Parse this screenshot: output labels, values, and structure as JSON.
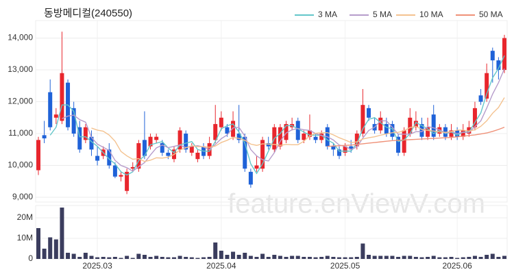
{
  "chart_data": {
    "type": "candlestick",
    "title": "동방메디컬(240550)",
    "watermark": "feature.enViewV.com",
    "categories": [
      null,
      null,
      null,
      null,
      null,
      null,
      null,
      null,
      null,
      null,
      "2025.03",
      null,
      null,
      null,
      null,
      null,
      null,
      null,
      null,
      null,
      null,
      null,
      null,
      null,
      null,
      null,
      null,
      null,
      null,
      null,
      null,
      "2025.04",
      null,
      null,
      null,
      null,
      null,
      null,
      null,
      null,
      null,
      null,
      null,
      null,
      null,
      null,
      null,
      null,
      null,
      null,
      null,
      null,
      "2025.05",
      null,
      null,
      null,
      null,
      null,
      null,
      null,
      null,
      null,
      null,
      null,
      null,
      null,
      null,
      null,
      null,
      null,
      null,
      "2025.06",
      null,
      null,
      null,
      null,
      null,
      null,
      null,
      null
    ],
    "open": [
      9850,
      10950,
      12300,
      11500,
      11400,
      12600,
      11800,
      11200,
      10800,
      10900,
      10300,
      10300,
      10500,
      10000,
      9650,
      9200,
      9900,
      9900,
      10800,
      10600,
      10800,
      10700,
      10400,
      10200,
      10500,
      11000,
      10400,
      10200,
      10600,
      10300,
      10800,
      11200,
      11200,
      10900,
      11000,
      10900,
      9800,
      9900,
      9900,
      10700,
      10500,
      10600,
      10800,
      11200,
      11400,
      10800,
      10900,
      10900,
      10800,
      11200,
      10600,
      10500,
      10400,
      10600,
      10600,
      11000,
      11800,
      11300,
      11100,
      11300,
      11300,
      10900,
      10400,
      11000,
      11200,
      11300,
      10900,
      11600,
      11000,
      11200,
      10900,
      11100,
      10900,
      11000,
      11200,
      12200,
      12100,
      13600,
      13300,
      13000
    ],
    "high": [
      10900,
      11400,
      12700,
      11800,
      14200,
      12700,
      12000,
      11400,
      11300,
      11100,
      10600,
      10600,
      10700,
      10100,
      9800,
      9900,
      10100,
      10800,
      11700,
      11000,
      11000,
      10800,
      10500,
      10600,
      11200,
      11100,
      10700,
      10500,
      10700,
      10900,
      11900,
      11700,
      11300,
      11700,
      11900,
      11000,
      9900,
      10300,
      10900,
      10900,
      11300,
      11300,
      11400,
      11500,
      11500,
      11100,
      11600,
      11000,
      11100,
      11300,
      10700,
      10600,
      10700,
      10800,
      11100,
      12400,
      11900,
      11500,
      11700,
      11500,
      11400,
      11000,
      11200,
      11800,
      11700,
      11500,
      11500,
      11900,
      11300,
      11300,
      11300,
      11200,
      11300,
      11400,
      12000,
      12400,
      13200,
      13700,
      13400,
      14100
    ],
    "low": [
      9700,
      10700,
      11100,
      11300,
      11300,
      11100,
      10900,
      10400,
      10700,
      10300,
      10000,
      10200,
      9900,
      9600,
      9500,
      9100,
      9800,
      9800,
      10200,
      10500,
      10700,
      10300,
      10200,
      10100,
      10400,
      10400,
      10300,
      10100,
      10200,
      10200,
      10700,
      11100,
      10900,
      10800,
      10700,
      9800,
      9300,
      9800,
      9800,
      10500,
      10400,
      10500,
      10700,
      11100,
      10700,
      10700,
      10800,
      10700,
      10700,
      10500,
      10300,
      10200,
      10300,
      10400,
      10500,
      10900,
      11400,
      11000,
      11000,
      10900,
      10800,
      10300,
      10300,
      10900,
      11100,
      10800,
      10800,
      10800,
      10900,
      10800,
      10800,
      10800,
      10800,
      10900,
      11100,
      11900,
      12000,
      12600,
      12700,
      12900
    ],
    "close": [
      10800,
      10850,
      11200,
      11600,
      12900,
      11200,
      11000,
      10500,
      11200,
      10500,
      10150,
      10500,
      10000,
      9650,
      9700,
      9800,
      9950,
      10700,
      10300,
      10900,
      10900,
      10400,
      10300,
      10500,
      11100,
      10500,
      10600,
      10400,
      10300,
      10700,
      11300,
      11500,
      11000,
      11400,
      10800,
      9900,
      9400,
      10000,
      10800,
      10600,
      11200,
      11200,
      11300,
      11300,
      10800,
      11000,
      11100,
      10800,
      11000,
      10600,
      10500,
      10300,
      10600,
      10500,
      11000,
      11900,
      11500,
      11100,
      11500,
      11000,
      10900,
      10400,
      11100,
      11500,
      11400,
      10900,
      11200,
      10900,
      11200,
      10900,
      11100,
      10900,
      11100,
      11200,
      11800,
      12000,
      12900,
      13300,
      13000,
      14000
    ],
    "up_color": "#e8262d",
    "down_color": "#1f62d8",
    "ylim": [
      8850,
      14550
    ],
    "yticks": [
      {
        "value": 9000,
        "label": "9,000"
      },
      {
        "value": 10000,
        "label": "10,000"
      },
      {
        "value": 11000,
        "label": "11,000"
      },
      {
        "value": 12000,
        "label": "12,000"
      },
      {
        "value": 13000,
        "label": "13,000"
      },
      {
        "value": 14000,
        "label": "14,000"
      }
    ],
    "grid": true,
    "legend": "top-right",
    "series": [
      {
        "name": "3 MA",
        "color": "#62c6c9",
        "values": [
          null,
          null,
          10950,
          11200,
          11900,
          11900,
          11700,
          10900,
          10900,
          10750,
          10600,
          10400,
          10200,
          10050,
          9800,
          9700,
          9800,
          10150,
          10300,
          10650,
          10700,
          10750,
          10550,
          10400,
          10650,
          10700,
          10750,
          10500,
          10450,
          10450,
          10750,
          11150,
          11250,
          11300,
          11050,
          10700,
          10050,
          9750,
          10050,
          10450,
          10850,
          11000,
          11250,
          11250,
          11150,
          11050,
          10950,
          10950,
          10950,
          10800,
          10700,
          10450,
          10450,
          10450,
          10700,
          11150,
          11450,
          11500,
          11350,
          11200,
          11150,
          10750,
          10800,
          11000,
          11350,
          11250,
          11150,
          11000,
          11100,
          11000,
          11050,
          10950,
          11050,
          11050,
          11350,
          11650,
          12250,
          12750,
          13050,
          13450
        ]
      },
      {
        "name": "5 MA",
        "color": "#b69ccb",
        "values": [
          null,
          null,
          null,
          null,
          11470,
          11550,
          11580,
          11440,
          11360,
          10880,
          10670,
          10570,
          10470,
          10160,
          10000,
          9930,
          9820,
          9960,
          10090,
          10330,
          10550,
          10640,
          10560,
          10600,
          10640,
          10560,
          10600,
          10620,
          10580,
          10500,
          10660,
          10840,
          10960,
          11180,
          11200,
          10920,
          10500,
          10300,
          10180,
          10140,
          10400,
          10760,
          11020,
          11120,
          11160,
          11120,
          11100,
          11000,
          10940,
          10900,
          10800,
          10640,
          10600,
          10500,
          10580,
          10860,
          11100,
          11200,
          11400,
          11400,
          11200,
          10980,
          10980,
          10980,
          11060,
          11060,
          11220,
          11180,
          11120,
          11020,
          11060,
          11000,
          11040,
          11040,
          11220,
          11400,
          11800,
          12240,
          12600,
          13040
        ]
      },
      {
        "name": "10 MA",
        "color": "#f4c28f",
        "values": [
          null,
          null,
          null,
          null,
          null,
          null,
          null,
          null,
          null,
          11175,
          11110,
          11075,
          10955,
          10760,
          10440,
          10300,
          10195,
          10215,
          10125,
          10165,
          10240,
          10230,
          10260,
          10345,
          10485,
          10555,
          10620,
          10590,
          10590,
          10570,
          10610,
          10720,
          10790,
          10880,
          10850,
          10790,
          10670,
          10630,
          10680,
          10670,
          10660,
          10630,
          10660,
          10650,
          10650,
          10760,
          10930,
          11010,
          11030,
          11030,
          10960,
          10870,
          10800,
          10720,
          10740,
          10830,
          10870,
          10900,
          10950,
          10990,
          11030,
          11040,
          11090,
          11190,
          11230,
          11130,
          11100,
          11080,
          11050,
          11040,
          11060,
          11110,
          11110,
          11080,
          11120,
          11230,
          11400,
          11640,
          11820,
          12130
        ]
      },
      {
        "name": "50 MA",
        "color": "#ef9077",
        "values": [
          null,
          null,
          null,
          null,
          null,
          null,
          null,
          null,
          null,
          null,
          null,
          null,
          null,
          null,
          null,
          null,
          null,
          null,
          null,
          null,
          null,
          null,
          null,
          null,
          null,
          null,
          null,
          null,
          null,
          null,
          null,
          null,
          null,
          null,
          null,
          null,
          null,
          null,
          null,
          null,
          null,
          null,
          null,
          null,
          null,
          null,
          null,
          null,
          null,
          10600,
          10610,
          10620,
          10630,
          10640,
          10660,
          10680,
          10700,
          10720,
          10740,
          10760,
          10780,
          10790,
          10800,
          10810,
          10820,
          10830,
          10840,
          10850,
          10860,
          10870,
          10880,
          10900,
          10920,
          10940,
          10960,
          10990,
          11020,
          11070,
          11130,
          11200
        ]
      }
    ],
    "volume": {
      "color": "#3b3d5e",
      "ylim": [
        0,
        26000000
      ],
      "yticks": [
        0,
        {
          "value": 10000000,
          "label": "10M"
        },
        {
          "value": 20000000,
          "label": "20M"
        }
      ],
      "values": [
        15000000,
        5000000,
        10500000,
        9500000,
        25000000,
        3000000,
        2500000,
        1000000,
        3000000,
        1500000,
        800000,
        1000000,
        800000,
        1000000,
        500000,
        1500000,
        500000,
        2500000,
        2000000,
        1000000,
        1500000,
        1000000,
        800000,
        800000,
        1500000,
        1000000,
        800000,
        500000,
        800000,
        1000000,
        8000000,
        4000000,
        2000000,
        3500000,
        2000000,
        3000000,
        1500000,
        1000000,
        2500000,
        1000000,
        2000000,
        1500000,
        1000000,
        1500000,
        1500000,
        1000000,
        1000000,
        800000,
        1000000,
        1500000,
        1000000,
        800000,
        800000,
        800000,
        1000000,
        7500000,
        2000000,
        1500000,
        1500000,
        1500000,
        1500000,
        1000000,
        1500000,
        1500000,
        1000000,
        800000,
        1000000,
        1500000,
        800000,
        800000,
        1000000,
        500000,
        800000,
        1000000,
        1500000,
        1000000,
        2000000,
        2500000,
        1000000,
        1500000
      ]
    }
  }
}
